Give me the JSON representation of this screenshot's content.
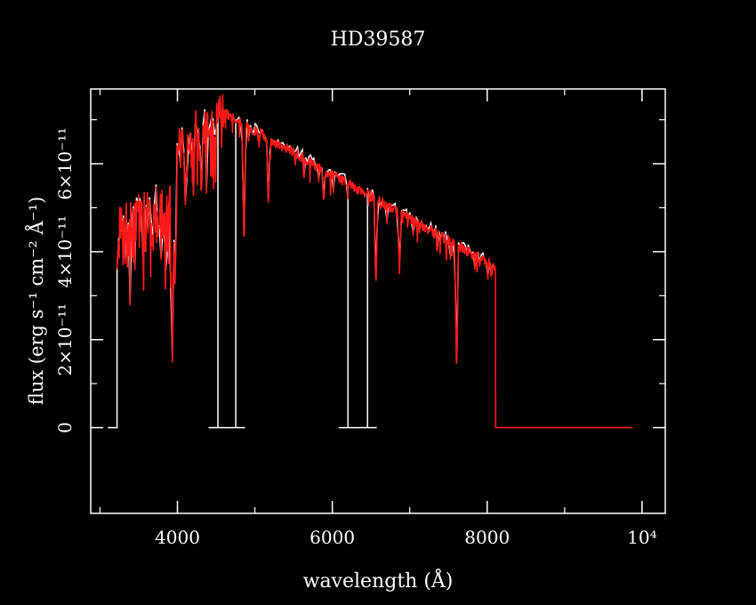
{
  "chart_data": {
    "type": "line",
    "title": "HD39587",
    "xlabel": "wavelength (Å)",
    "ylabel": "flux (erg s⁻¹ cm⁻² Å⁻¹)",
    "xlim": [
      2880,
      10300
    ],
    "ylim": [
      -1.95e-11,
      7.7e-11
    ],
    "x_ticks": [
      {
        "value": 4000,
        "label": "4000"
      },
      {
        "value": 6000,
        "label": "6000"
      },
      {
        "value": 8000,
        "label": "8000"
      },
      {
        "value": 10000,
        "label": "10⁴"
      }
    ],
    "y_ticks": [
      {
        "value": 0,
        "label": "0"
      },
      {
        "value": 2e-11,
        "label": "2×10⁻¹¹"
      },
      {
        "value": 4e-11,
        "label": "4×10⁻¹¹"
      },
      {
        "value": 6e-11,
        "label": "6×10⁻¹¹"
      }
    ],
    "series": [
      {
        "color": "#ffffff",
        "points": [
          [
            3100,
            0
          ],
          [
            3220,
            0
          ],
          [
            3220,
            4.2e-11
          ],
          [
            3300,
            5e-11
          ],
          [
            3500,
            4.6e-11
          ],
          [
            3700,
            5.1e-11
          ],
          [
            3900,
            4.5e-11
          ],
          [
            3960,
            6.3e-11
          ],
          [
            4100,
            7e-11
          ],
          [
            4300,
            6.5e-11
          ],
          [
            4500,
            7.3e-11
          ],
          [
            4510,
            0
          ],
          [
            4520,
            0
          ],
          [
            4520,
            0
          ],
          [
            4500,
            0
          ],
          [
            4370,
            0
          ],
          [
            4510,
            0
          ],
          [
            4510,
            7.3e-11
          ],
          [
            4510,
            0
          ],
          [
            4510,
            0
          ]
        ]
      }
    ],
    "features": {
      "white_gaps": [
        [
          4510,
          4750
        ],
        [
          6200,
          6450
        ]
      ],
      "red_end": 8110,
      "zero_end": 9880,
      "absorption_lines": [
        [
          3934,
          1.5e-11
        ],
        [
          3968,
          3.2e-11
        ],
        [
          4101,
          5e-11
        ],
        [
          4308,
          5.2e-11
        ],
        [
          4861,
          4e-11
        ],
        [
          5175,
          5e-11
        ],
        [
          5890,
          5.1e-11
        ],
        [
          6563,
          3.1e-11
        ],
        [
          6867,
          3.5e-11
        ],
        [
          7605,
          1.1e-11
        ]
      ]
    }
  }
}
